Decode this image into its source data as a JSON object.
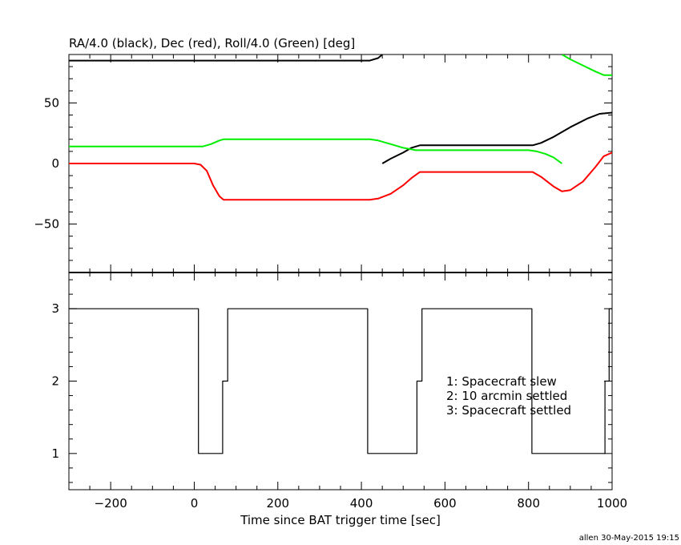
{
  "chart_data": [
    {
      "type": "line",
      "title": "RA/4.0 (black), Dec (red), Roll/4.0 (Green) [deg]",
      "xlim": [
        -300,
        1000
      ],
      "ylim": [
        -90,
        90
      ],
      "yticks": [
        50,
        0,
        -50
      ],
      "ytick_labels": [
        "50",
        "0",
        "−50"
      ],
      "series": [
        {
          "color": "#000000",
          "x": [
            -300,
            300,
            420,
            440,
            450,
            470,
            500,
            520,
            540,
            600,
            700,
            790,
            810,
            830,
            860,
            900,
            940,
            970,
            1000
          ],
          "y": [
            85,
            85,
            85,
            87,
            90,
            null,
            null,
            null,
            null,
            null,
            null,
            null,
            null,
            null,
            null,
            null,
            null,
            null,
            null
          ]
        },
        {
          "color": "#000000",
          "x": [
            450,
            470,
            500,
            520,
            540,
            600,
            700,
            790,
            810,
            830,
            860,
            900,
            940,
            970,
            1000
          ],
          "y": [
            0,
            4,
            9,
            13,
            15,
            15,
            15,
            15,
            15,
            17,
            22,
            30,
            37,
            41,
            42
          ]
        },
        {
          "color": "#ff0000",
          "x": [
            -300,
            0,
            15,
            30,
            45,
            60,
            70,
            100,
            200,
            300,
            400,
            420,
            440,
            470,
            500,
            520,
            540,
            600,
            700,
            790,
            810,
            830,
            860,
            880,
            900,
            930,
            960,
            980,
            1000
          ],
          "y": [
            0,
            0,
            -1,
            -6,
            -18,
            -27,
            -30,
            -30,
            -30,
            -30,
            -30,
            -30,
            -29,
            -25,
            -18,
            -12,
            -7,
            -7,
            -7,
            -7,
            -7,
            -11,
            -19,
            -23,
            -22,
            -15,
            -3,
            6,
            9
          ]
        },
        {
          "color": "#00ee00",
          "x": [
            -300,
            0,
            20,
            40,
            60,
            70,
            200,
            300,
            420,
            440,
            470,
            500,
            530,
            550,
            600,
            700,
            800,
            820,
            840,
            860,
            880
          ],
          "y": [
            14,
            14,
            14,
            16,
            19,
            20,
            20,
            20,
            20,
            19,
            16,
            13,
            11,
            11,
            11,
            11,
            11,
            10,
            8,
            5,
            0
          ]
        },
        {
          "color": "#00ee00",
          "x": [
            880,
            900,
            930,
            960,
            980,
            1000
          ],
          "y": [
            90,
            86,
            81,
            76,
            73,
            73
          ]
        }
      ]
    },
    {
      "type": "line",
      "title": "",
      "xlabel": "Time since BAT trigger time [sec]",
      "xlim": [
        -300,
        1000
      ],
      "ylim": [
        0.5,
        3.5
      ],
      "yticks": [
        3,
        2,
        1
      ],
      "ytick_labels": [
        "3",
        "2",
        "1"
      ],
      "xticks": [
        -200,
        0,
        200,
        400,
        600,
        800,
        1000
      ],
      "xtick_labels": [
        "−200",
        "0",
        "200",
        "400",
        "600",
        "800",
        "1000"
      ],
      "legend": [
        "1: Spacecraft slew",
        "2: 10 arcmin settled",
        "3: Spacecraft settled"
      ],
      "series": [
        {
          "color": "#000000",
          "step": true,
          "x": [
            -300,
            10,
            10,
            68,
            68,
            80,
            80,
            415,
            415,
            533,
            533,
            545,
            545,
            808,
            808,
            983,
            983,
            993,
            993,
            1000
          ],
          "y": [
            3,
            3,
            1,
            1,
            2,
            2,
            3,
            3,
            1,
            1,
            2,
            2,
            3,
            3,
            1,
            1,
            2,
            2,
            3,
            3
          ]
        }
      ]
    }
  ],
  "footer": "allen 30-May-2015 19:15"
}
